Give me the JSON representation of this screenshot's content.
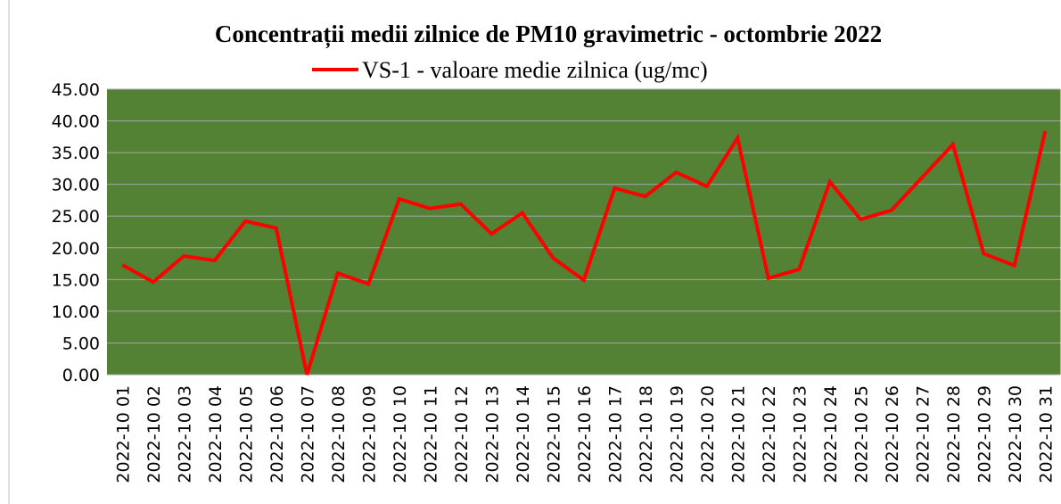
{
  "chart_data": {
    "type": "line",
    "title": "Concentrații medii zilnice de PM10 gravimetric - octombrie 2022",
    "categories": [
      "2022-10 01",
      "2022-10 02",
      "2022-10 03",
      "2022-10 04",
      "2022-10 05",
      "2022-10 06",
      "2022-10 07",
      "2022-10 08",
      "2022-10 09",
      "2022-10 10",
      "2022-10 11",
      "2022-10 12",
      "2022-10 13",
      "2022-10 14",
      "2022-10 15",
      "2022-10 16",
      "2022-10 17",
      "2022-10 18",
      "2022-10 19",
      "2022-10 20",
      "2022-10 21",
      "2022-10 22",
      "2022-10 23",
      "2022-10 24",
      "2022-10 25",
      "2022-10 26",
      "2022-10 27",
      "2022-10 28",
      "2022-10 29",
      "2022-10 30",
      "2022-10 31"
    ],
    "series": [
      {
        "name": "VS-1 - valoare medie zilnica (ug/mc)",
        "color": "#ff0000",
        "values": [
          17.3,
          14.6,
          18.7,
          18.0,
          24.2,
          23.1,
          0,
          16.0,
          14.3,
          27.7,
          26.2,
          26.9,
          22.2,
          25.5,
          18.4,
          14.9,
          29.4,
          28.1,
          31.9,
          29.7,
          37.3,
          15.2,
          16.6,
          30.4,
          24.5,
          25.9,
          31.1,
          36.3,
          19.1,
          17.2,
          38.4
        ]
      }
    ],
    "ylim": [
      0,
      45
    ],
    "yticks": [
      {
        "value": 0,
        "label": "0.00"
      },
      {
        "value": 5,
        "label": "5.00"
      },
      {
        "value": 10,
        "label": "10.00"
      },
      {
        "value": 15,
        "label": "15.00"
      },
      {
        "value": 20,
        "label": "20.00"
      },
      {
        "value": 25,
        "label": "25.00"
      },
      {
        "value": 30,
        "label": "30.00"
      },
      {
        "value": 35,
        "label": "35.00"
      },
      {
        "value": 40,
        "label": "40.00"
      },
      {
        "value": 45,
        "label": "45.00"
      }
    ],
    "grid": true,
    "plot_background": "#548235",
    "legend": "top"
  }
}
